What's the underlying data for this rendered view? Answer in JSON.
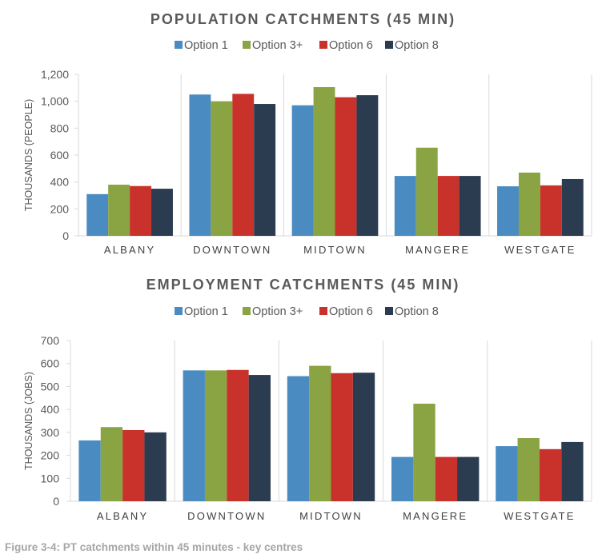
{
  "caption": "Figure 3-4: PT catchments within 45 minutes - key centres",
  "chart_data": [
    {
      "type": "bar",
      "title": "POPULATION CATCHMENTS (45 MIN)",
      "xlabel": "",
      "ylabel": "THOUSANDS (PEOPLE)",
      "ylim": [
        0,
        1200
      ],
      "yticks": [
        0,
        200,
        400,
        600,
        800,
        1000,
        1200
      ],
      "ytick_labels": [
        "0",
        "200",
        "400",
        "600",
        "800",
        "1,000",
        "1,200"
      ],
      "categories": [
        "ALBANY",
        "DOWNTOWN",
        "MIDTOWN",
        "MANGERE",
        "WESTGATE"
      ],
      "legend_position": "top-center",
      "grid": false,
      "series": [
        {
          "name": "Option 1",
          "color": "#4a8bc2",
          "values": [
            310,
            1050,
            970,
            445,
            368
          ]
        },
        {
          "name": "Option 3+",
          "color": "#8aa343",
          "values": [
            380,
            1000,
            1105,
            655,
            470
          ]
        },
        {
          "name": "Option 6",
          "color": "#c9322a",
          "values": [
            370,
            1055,
            1030,
            445,
            375
          ]
        },
        {
          "name": "Option 8",
          "color": "#2b3b50",
          "values": [
            350,
            980,
            1045,
            445,
            422
          ]
        }
      ]
    },
    {
      "type": "bar",
      "title": "EMPLOYMENT CATCHMENTS (45 MIN)",
      "xlabel": "",
      "ylabel": "THOUSANDS (JOBS)",
      "ylim": [
        0,
        700
      ],
      "yticks": [
        0,
        100,
        200,
        300,
        400,
        500,
        600,
        700
      ],
      "ytick_labels": [
        "0",
        "100",
        "200",
        "300",
        "400",
        "500",
        "600",
        "700"
      ],
      "categories": [
        "ALBANY",
        "DOWNTOWN",
        "MIDTOWN",
        "MANGERE",
        "WESTGATE"
      ],
      "legend_position": "top-center",
      "grid": false,
      "series": [
        {
          "name": "Option 1",
          "color": "#4a8bc2",
          "values": [
            265,
            570,
            545,
            193,
            240
          ]
        },
        {
          "name": "Option 3+",
          "color": "#8aa343",
          "values": [
            323,
            570,
            590,
            425,
            275
          ]
        },
        {
          "name": "Option 6",
          "color": "#c9322a",
          "values": [
            310,
            572,
            558,
            193,
            227
          ]
        },
        {
          "name": "Option 8",
          "color": "#2b3b50",
          "values": [
            300,
            550,
            560,
            193,
            258
          ]
        }
      ]
    }
  ]
}
